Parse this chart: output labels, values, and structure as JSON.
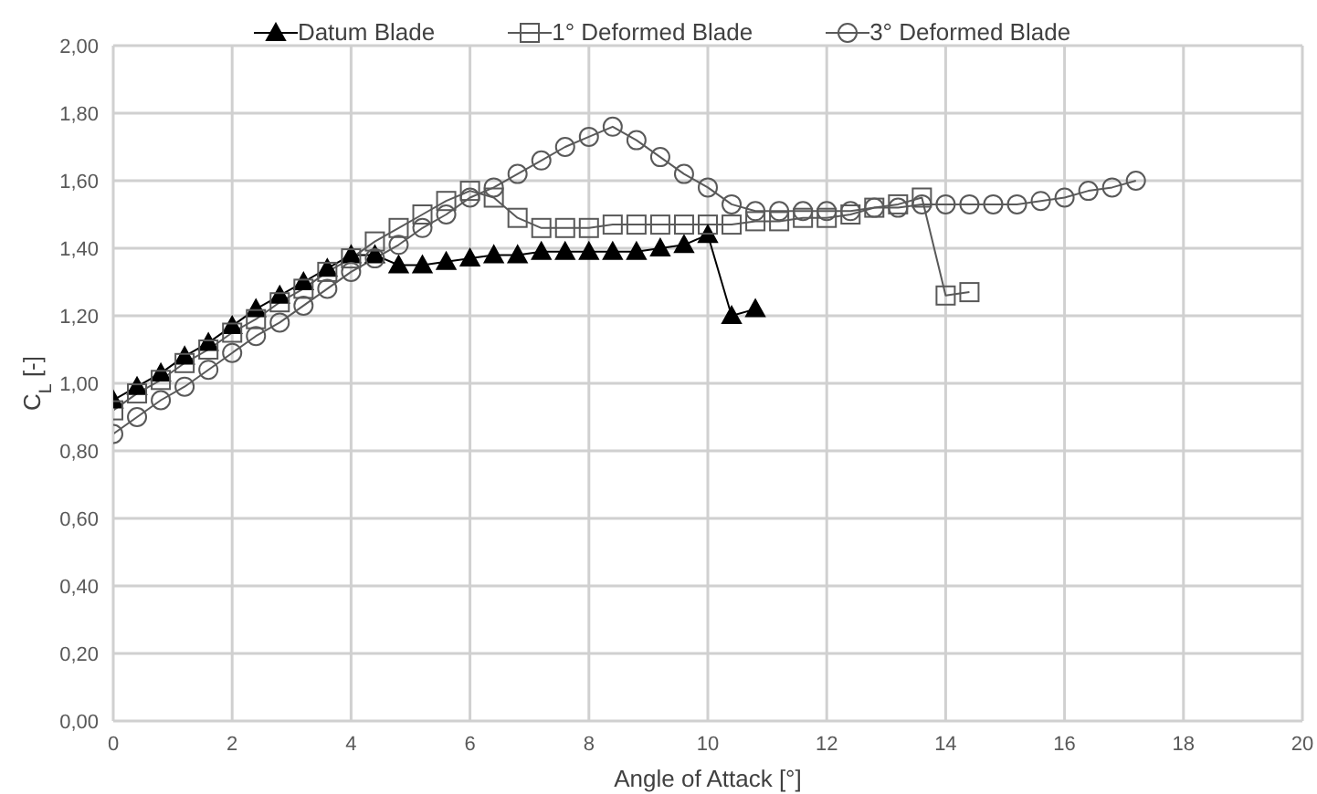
{
  "chart_data": {
    "type": "line",
    "xlabel": "Angle of Attack [°]",
    "ylabel": "C$_{L}$ [-]",
    "xlim": [
      0,
      20
    ],
    "xticks": [
      0,
      2,
      4,
      6,
      8,
      10,
      12,
      14,
      16,
      18,
      20
    ],
    "ylim": [
      0,
      2
    ],
    "yticks": [
      {
        "value": 0,
        "label": "0,00"
      },
      {
        "value": 0.2,
        "label": "0,20"
      },
      {
        "value": 0.4,
        "label": "0,40"
      },
      {
        "value": 0.6,
        "label": "0,60"
      },
      {
        "value": 0.8,
        "label": "0,80"
      },
      {
        "value": 1,
        "label": "1,00"
      },
      {
        "value": 1.2,
        "label": "1,20"
      },
      {
        "value": 1.4,
        "label": "1,40"
      },
      {
        "value": 1.6,
        "label": "1,60"
      },
      {
        "value": 1.8,
        "label": "1,80"
      },
      {
        "value": 2,
        "label": "2,00"
      }
    ],
    "grid": true,
    "legend": "top",
    "line_style": "solid",
    "series": [
      {
        "name": "Datum Blade",
        "color": "#000000",
        "marker": "triangle",
        "x": [
          0,
          0.4,
          0.8,
          1.2,
          1.6,
          2,
          2.4,
          2.8,
          3.2,
          3.6,
          4,
          4.4,
          4.8,
          5.2,
          5.6,
          6,
          6.4,
          6.8,
          7.2,
          7.6,
          8,
          8.4,
          8.8,
          9.2,
          9.6,
          10,
          10.4,
          10.8
        ],
        "values": [
          0.95,
          0.99,
          1.03,
          1.08,
          1.12,
          1.17,
          1.22,
          1.26,
          1.3,
          1.34,
          1.38,
          1.38,
          1.35,
          1.35,
          1.36,
          1.37,
          1.38,
          1.38,
          1.39,
          1.39,
          1.39,
          1.39,
          1.39,
          1.4,
          1.41,
          1.44,
          1.2,
          1.22
        ]
      },
      {
        "name": "1° Deformed Blade",
        "color": "#595959",
        "marker": "square",
        "x": [
          0,
          0.4,
          0.8,
          1.2,
          1.6,
          2,
          2.4,
          2.8,
          3.2,
          3.6,
          4,
          4.4,
          4.8,
          5.2,
          5.6,
          6,
          6.4,
          6.8,
          7.2,
          7.6,
          8,
          8.4,
          8.8,
          9.2,
          9.6,
          10,
          10.4,
          10.8,
          11.2,
          11.6,
          12,
          12.4,
          12.8,
          13.2,
          13.6,
          14,
          14.4
        ],
        "values": [
          0.92,
          0.97,
          1.01,
          1.06,
          1.1,
          1.15,
          1.19,
          1.24,
          1.28,
          1.33,
          1.37,
          1.42,
          1.46,
          1.5,
          1.54,
          1.57,
          1.55,
          1.49,
          1.46,
          1.46,
          1.46,
          1.47,
          1.47,
          1.47,
          1.47,
          1.47,
          1.47,
          1.48,
          1.48,
          1.49,
          1.49,
          1.5,
          1.52,
          1.53,
          1.55,
          1.26,
          1.27
        ]
      },
      {
        "name": "3° Deformed Blade",
        "color": "#595959",
        "marker": "circle",
        "x": [
          0,
          0.4,
          0.8,
          1.2,
          1.6,
          2,
          2.4,
          2.8,
          3.2,
          3.6,
          4,
          4.4,
          4.8,
          5.2,
          5.6,
          6,
          6.4,
          6.8,
          7.2,
          7.6,
          8,
          8.4,
          8.8,
          9.2,
          9.6,
          10,
          10.4,
          10.8,
          11.2,
          11.6,
          12,
          12.4,
          12.8,
          13.2,
          13.6,
          14,
          14.4,
          14.8,
          15.2,
          15.6,
          16,
          16.4,
          16.8,
          17.2
        ],
        "values": [
          0.85,
          0.9,
          0.95,
          0.99,
          1.04,
          1.09,
          1.14,
          1.18,
          1.23,
          1.28,
          1.33,
          1.37,
          1.41,
          1.46,
          1.5,
          1.55,
          1.58,
          1.62,
          1.66,
          1.7,
          1.73,
          1.76,
          1.72,
          1.67,
          1.62,
          1.58,
          1.53,
          1.51,
          1.51,
          1.51,
          1.51,
          1.51,
          1.52,
          1.52,
          1.53,
          1.53,
          1.53,
          1.53,
          1.53,
          1.54,
          1.55,
          1.57,
          1.58,
          1.6
        ]
      }
    ]
  }
}
